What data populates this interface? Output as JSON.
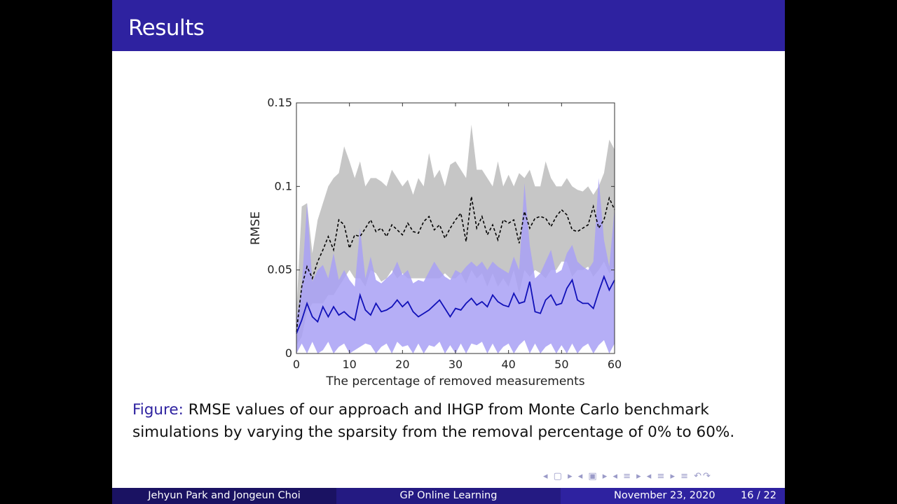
{
  "slide": {
    "title": "Results",
    "caption_lead": "Figure:",
    "caption_text": " RMSE values of our approach and IHGP from Monte Carlo benchmark simulations by varying the sparsity from the removal percentage of 0% to 60%.",
    "nav_symbols": "◂ ▢ ▸ ◂ ▣ ▸ ◂ ≡ ▸ ◂ ≡ ▸ ≡ ↶↷",
    "footer": {
      "authors": "Jehyun Park and Jongeun Choi",
      "short_title": "GP Online Learning",
      "date": "November 23, 2020",
      "page": "16 / 22"
    },
    "colors": {
      "titlebar": "#2e22a0",
      "gray_band": "#c6c6c6",
      "blue_band": "#a8a0f4",
      "blue_line": "#1010b8",
      "dashed_line": "#000000"
    }
  },
  "chart_data": {
    "type": "line",
    "xlabel": "The percentage of removed measurements",
    "ylabel": "RMSE",
    "xlim": [
      0,
      60
    ],
    "ylim": [
      0,
      0.15
    ],
    "xticks": [
      0,
      10,
      20,
      30,
      40,
      50,
      60
    ],
    "yticks": [
      0,
      0.05,
      0.1,
      0.15
    ],
    "ytick_labels": [
      "0",
      "0.05",
      "0.1",
      "0.15"
    ],
    "x": [
      0,
      1,
      2,
      3,
      4,
      5,
      6,
      7,
      8,
      9,
      10,
      11,
      12,
      13,
      14,
      15,
      16,
      17,
      18,
      19,
      20,
      21,
      22,
      23,
      24,
      25,
      26,
      27,
      28,
      29,
      30,
      31,
      32,
      33,
      34,
      35,
      36,
      37,
      38,
      39,
      40,
      41,
      42,
      43,
      44,
      45,
      46,
      47,
      48,
      49,
      50,
      51,
      52,
      53,
      54,
      55,
      56,
      57,
      58,
      59,
      60
    ],
    "series": [
      {
        "style": "dashed-black",
        "values": [
          0.013,
          0.04,
          0.052,
          0.045,
          0.055,
          0.062,
          0.07,
          0.062,
          0.08,
          0.077,
          0.063,
          0.071,
          0.07,
          0.075,
          0.08,
          0.073,
          0.075,
          0.07,
          0.077,
          0.074,
          0.071,
          0.078,
          0.073,
          0.072,
          0.079,
          0.082,
          0.074,
          0.077,
          0.069,
          0.075,
          0.08,
          0.084,
          0.067,
          0.094,
          0.075,
          0.082,
          0.071,
          0.077,
          0.068,
          0.08,
          0.078,
          0.08,
          0.066,
          0.085,
          0.075,
          0.081,
          0.082,
          0.081,
          0.076,
          0.082,
          0.086,
          0.083,
          0.074,
          0.073,
          0.075,
          0.077,
          0.088,
          0.075,
          0.08,
          0.093,
          0.086
        ]
      },
      {
        "style": "solid-blue",
        "values": [
          0.012,
          0.02,
          0.03,
          0.022,
          0.019,
          0.028,
          0.022,
          0.028,
          0.023,
          0.025,
          0.022,
          0.02,
          0.035,
          0.026,
          0.023,
          0.03,
          0.025,
          0.026,
          0.028,
          0.032,
          0.028,
          0.031,
          0.025,
          0.022,
          0.024,
          0.026,
          0.029,
          0.032,
          0.027,
          0.022,
          0.027,
          0.026,
          0.03,
          0.033,
          0.029,
          0.031,
          0.028,
          0.035,
          0.031,
          0.029,
          0.028,
          0.036,
          0.03,
          0.031,
          0.043,
          0.025,
          0.024,
          0.032,
          0.035,
          0.029,
          0.03,
          0.039,
          0.044,
          0.032,
          0.03,
          0.03,
          0.027,
          0.037,
          0.046,
          0.038,
          0.044
        ]
      }
    ],
    "bands": [
      {
        "style": "gray",
        "upper": [
          0.025,
          0.088,
          0.09,
          0.06,
          0.08,
          0.09,
          0.1,
          0.105,
          0.108,
          0.124,
          0.115,
          0.105,
          0.115,
          0.1,
          0.105,
          0.105,
          0.103,
          0.1,
          0.11,
          0.105,
          0.1,
          0.104,
          0.095,
          0.105,
          0.1,
          0.12,
          0.105,
          0.11,
          0.1,
          0.113,
          0.115,
          0.11,
          0.105,
          0.137,
          0.11,
          0.11,
          0.105,
          0.1,
          0.115,
          0.1,
          0.107,
          0.1,
          0.108,
          0.105,
          0.11,
          0.1,
          0.1,
          0.115,
          0.105,
          0.1,
          0.1,
          0.105,
          0.1,
          0.098,
          0.097,
          0.1,
          0.095,
          0.1,
          0.108,
          0.128,
          0.122
        ],
        "lower": [
          0.005,
          0.01,
          0.025,
          0.03,
          0.03,
          0.03,
          0.035,
          0.035,
          0.04,
          0.045,
          0.05,
          0.045,
          0.045,
          0.04,
          0.05,
          0.048,
          0.043,
          0.045,
          0.05,
          0.045,
          0.048,
          0.045,
          0.045,
          0.045,
          0.045,
          0.045,
          0.045,
          0.045,
          0.048,
          0.045,
          0.045,
          0.048,
          0.042,
          0.05,
          0.045,
          0.048,
          0.04,
          0.048,
          0.04,
          0.045,
          0.04,
          0.05,
          0.036,
          0.05,
          0.046,
          0.05,
          0.048,
          0.045,
          0.05,
          0.05,
          0.055,
          0.055,
          0.046,
          0.05,
          0.05,
          0.052,
          0.046,
          0.05,
          0.055,
          0.048,
          0.052
        ]
      },
      {
        "style": "blue",
        "upper": [
          0.02,
          0.04,
          0.09,
          0.043,
          0.05,
          0.053,
          0.045,
          0.06,
          0.044,
          0.05,
          0.044,
          0.04,
          0.075,
          0.045,
          0.058,
          0.044,
          0.042,
          0.045,
          0.048,
          0.055,
          0.047,
          0.05,
          0.042,
          0.044,
          0.043,
          0.049,
          0.055,
          0.05,
          0.046,
          0.044,
          0.05,
          0.048,
          0.052,
          0.055,
          0.052,
          0.055,
          0.05,
          0.055,
          0.052,
          0.05,
          0.048,
          0.058,
          0.05,
          0.102,
          0.065,
          0.045,
          0.048,
          0.055,
          0.062,
          0.048,
          0.05,
          0.06,
          0.065,
          0.055,
          0.052,
          0.05,
          0.055,
          0.105,
          0.068,
          0.052,
          0.087
        ],
        "lower": [
          0.0,
          0.006,
          0.0,
          0.007,
          0.0,
          0.002,
          0.007,
          0.0,
          0.004,
          0.006,
          0.0,
          0.002,
          0.004,
          0.006,
          0.005,
          0.0,
          0.004,
          0.006,
          0.0,
          0.007,
          0.004,
          0.005,
          0.0,
          0.006,
          0.0,
          0.005,
          0.004,
          0.007,
          0.0,
          0.005,
          0.0,
          0.006,
          0.0,
          0.006,
          0.005,
          0.007,
          0.0,
          0.006,
          0.0,
          0.004,
          0.006,
          0.0,
          0.005,
          0.008,
          0.0,
          0.006,
          0.0,
          0.004,
          0.006,
          0.0,
          0.005,
          0.0,
          0.006,
          0.0,
          0.004,
          0.006,
          0.0,
          0.005,
          0.008,
          0.0,
          0.006
        ]
      }
    ]
  }
}
